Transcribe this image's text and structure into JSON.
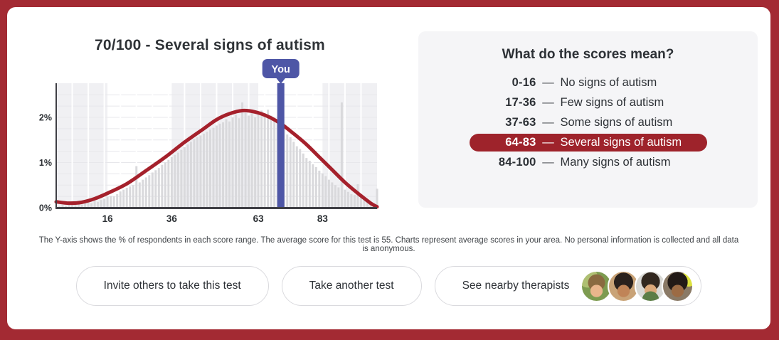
{
  "page": {
    "background_color": "#a32a33",
    "card_color": "#ffffff"
  },
  "result": {
    "title": "70/100 - Several signs of autism",
    "you_label": "You",
    "you_score": 70
  },
  "chart_data": {
    "type": "bar",
    "subtype": "score-distribution-histogram-with-curve",
    "x_range": [
      0,
      100
    ],
    "y_range_percent": [
      0,
      2.75
    ],
    "x_ticks": [
      16,
      36,
      63,
      83
    ],
    "y_ticks": [
      "0%",
      "1%",
      "2%"
    ],
    "bands": {
      "edges": [
        0,
        16,
        36,
        63,
        83,
        100
      ],
      "colors": [
        "#f0f0f3",
        "#ffffff",
        "#f0f0f3",
        "#ffffff",
        "#f0f0f3"
      ]
    },
    "bar_color": "#d9d9dc",
    "curve_color": "#a5212c",
    "you_color": "#4e56a6",
    "average_score": 55,
    "bar_values": [
      0.05,
      0.03,
      0.06,
      0.04,
      0.07,
      0.09,
      0.06,
      0.08,
      0.07,
      0.11,
      0.13,
      0.1,
      0.15,
      0.13,
      0.17,
      0.2,
      0.24,
      0.26,
      0.25,
      0.3,
      0.36,
      0.4,
      0.44,
      0.47,
      0.5,
      0.92,
      0.56,
      0.62,
      0.67,
      0.72,
      0.78,
      0.83,
      0.88,
      0.95,
      1.0,
      1.06,
      1.12,
      1.17,
      1.22,
      1.28,
      1.34,
      1.4,
      1.46,
      1.52,
      1.56,
      1.6,
      1.64,
      1.68,
      1.73,
      1.77,
      1.82,
      1.86,
      1.89,
      1.96,
      1.91,
      2.0,
      2.06,
      1.98,
      2.33,
      2.1,
      2.04,
      2.12,
      2.0,
      2.08,
      2.15,
      2.09,
      2.17,
      2.04,
      1.95,
      1.9,
      1.88,
      1.76,
      1.62,
      1.56,
      1.46,
      1.36,
      1.3,
      1.2,
      1.1,
      1.04,
      0.96,
      0.9,
      0.82,
      0.76,
      0.7,
      0.62,
      0.56,
      0.5,
      0.45,
      2.33,
      0.4,
      0.35,
      0.3,
      0.28,
      0.52,
      0.22,
      0.18,
      0.15,
      0.12,
      0.1,
      0.42
    ],
    "curve_points": [
      [
        0,
        0.13
      ],
      [
        4,
        0.1
      ],
      [
        8,
        0.12
      ],
      [
        12,
        0.2
      ],
      [
        16,
        0.32
      ],
      [
        22,
        0.53
      ],
      [
        28,
        0.82
      ],
      [
        34,
        1.12
      ],
      [
        40,
        1.45
      ],
      [
        46,
        1.75
      ],
      [
        50,
        1.95
      ],
      [
        54,
        2.08
      ],
      [
        58,
        2.15
      ],
      [
        62,
        2.12
      ],
      [
        66,
        2.02
      ],
      [
        70,
        1.86
      ],
      [
        74,
        1.64
      ],
      [
        78,
        1.4
      ],
      [
        82,
        1.12
      ],
      [
        86,
        0.84
      ],
      [
        90,
        0.56
      ],
      [
        94,
        0.32
      ],
      [
        98,
        0.1
      ],
      [
        100,
        0.02
      ]
    ],
    "you_score": 70
  },
  "legend": {
    "title": "What do the scores mean?",
    "active_color": "#9e232b",
    "rows": [
      {
        "range": "0-16",
        "dash": "—",
        "label": "No signs of autism",
        "active": false
      },
      {
        "range": "17-36",
        "dash": "—",
        "label": "Few signs of autism",
        "active": false
      },
      {
        "range": "37-63",
        "dash": "—",
        "label": "Some signs of autism",
        "active": false
      },
      {
        "range": "64-83",
        "dash": "—",
        "label": "Several signs of autism",
        "active": true
      },
      {
        "range": "84-100",
        "dash": "—",
        "label": "Many signs of autism",
        "active": false
      }
    ]
  },
  "footnote": "The Y-axis shows the % of respondents in each score range. The average score for this test is 55. Charts represent average scores in your area. No personal information is collected and all data is anonymous.",
  "actions": {
    "invite_label": "Invite others to take this test",
    "retake_label": "Take another test",
    "therapists_label": "See nearby therapists",
    "therapist_avatars": [
      "therapist-1",
      "therapist-2",
      "therapist-3",
      "therapist-4"
    ]
  }
}
